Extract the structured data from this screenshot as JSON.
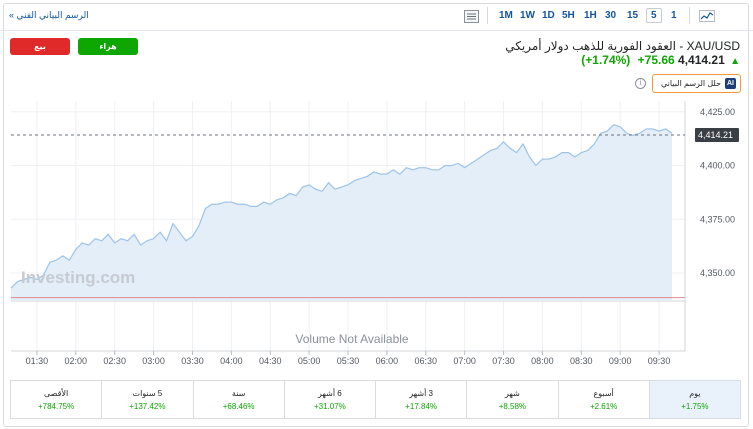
{
  "toolbar": {
    "technical_chart_link": "الرسم البياني الفني »",
    "timeframes": [
      "1M",
      "1W",
      "1D",
      "5H",
      "1H",
      "30",
      "15",
      "5",
      "1"
    ],
    "active_timeframe": "5"
  },
  "actions": {
    "sell_label": "بيع",
    "buy_label": "هراء"
  },
  "instrument": {
    "title": "XAU/USD - العقود الفورية للذهب دولار أمريكي",
    "price": "4,414.21",
    "change": "+75.66",
    "change_pct": "(+1.74%)",
    "ai_button_label": "حلل الرسم البياني",
    "ai_icon_text": "AI",
    "info_icon_text": "i"
  },
  "chart_data": {
    "type": "area",
    "watermark": "Investing.com",
    "no_volume_text": "Volume Not Available",
    "x_ticks": [
      "01:30",
      "02:00",
      "02:30",
      "03:00",
      "03:30",
      "04:00",
      "04:30",
      "05:00",
      "05:30",
      "06:00",
      "06:30",
      "07:00",
      "07:30",
      "08:00",
      "08:30",
      "09:00",
      "09:30"
    ],
    "y_ticks": [
      4350,
      4375,
      4400,
      4425
    ],
    "y_tick_labels": [
      "4,350.00",
      "4,375.00",
      "4,400.00",
      "4,425.00"
    ],
    "ylim": [
      4337,
      4430
    ],
    "last_price": 4414.21,
    "last_price_label": "4,414.21",
    "reference_price": 4338.55,
    "x_start": "01:10",
    "x_end": "09:50",
    "series": [
      {
        "x": [
          "01:10",
          "01:15",
          "01:20",
          "01:25",
          "01:30",
          "01:35",
          "01:40",
          "01:45",
          "01:50",
          "01:55",
          "02:00",
          "02:05",
          "02:10",
          "02:15",
          "02:20",
          "02:25",
          "02:30",
          "02:35",
          "02:40",
          "02:45",
          "02:50",
          "02:55",
          "03:00",
          "03:05",
          "03:10",
          "03:15",
          "03:20",
          "03:25",
          "03:30",
          "03:35",
          "03:40",
          "03:45",
          "03:50",
          "03:55",
          "04:00",
          "04:05",
          "04:10",
          "04:15",
          "04:20",
          "04:25",
          "04:30",
          "04:35",
          "04:40",
          "04:45",
          "04:50",
          "04:55",
          "05:00",
          "05:05",
          "05:10",
          "05:15",
          "05:20",
          "05:25",
          "05:30",
          "05:35",
          "05:40",
          "05:45",
          "05:50",
          "05:55",
          "06:00",
          "06:05",
          "06:10",
          "06:15",
          "06:20",
          "06:25",
          "06:30",
          "06:35",
          "06:40",
          "06:45",
          "06:50",
          "06:55",
          "07:00",
          "07:05",
          "07:10",
          "07:15",
          "07:20",
          "07:25",
          "07:30",
          "07:35",
          "07:40",
          "07:45",
          "07:50",
          "07:55",
          "08:00",
          "08:05",
          "08:10",
          "08:15",
          "08:20",
          "08:25",
          "08:30",
          "08:35",
          "08:40",
          "08:45",
          "08:50",
          "08:55",
          "09:00",
          "09:05",
          "09:10",
          "09:15",
          "09:20",
          "09:25",
          "09:30",
          "09:35",
          "09:40"
        ],
        "values": [
          4343,
          4346,
          4347,
          4348,
          4347,
          4349,
          4355,
          4356,
          4358,
          4356,
          4361,
          4364,
          4363,
          4366,
          4365,
          4368,
          4364,
          4366,
          4365,
          4368,
          4363,
          4365,
          4366,
          4369,
          4365,
          4373,
          4369,
          4365,
          4367,
          4372,
          4380,
          4382,
          4382,
          4383,
          4383,
          4382,
          4382,
          4381,
          4381,
          4383,
          4382,
          4384,
          4385,
          4387,
          4386,
          4390,
          4391,
          4389,
          4388,
          4392,
          4389,
          4390,
          4391,
          4393,
          4394,
          4395,
          4397,
          4396,
          4396,
          4398,
          4396,
          4399,
          4398,
          4399,
          4399,
          4398,
          4398,
          4400,
          4400,
          4401,
          4399,
          4401,
          4403,
          4405,
          4407,
          4408,
          4411,
          4408,
          4406,
          4410,
          4404,
          4400,
          4403,
          4403,
          4404,
          4406,
          4406,
          4404,
          4406,
          4407,
          4410,
          4415,
          4416,
          4419,
          4418,
          4415,
          4414,
          4415,
          4417,
          4417,
          4416,
          4417,
          4415
        ]
      }
    ],
    "x_label": "",
    "y_label": ""
  },
  "performance": [
    {
      "label": "الأقصى",
      "value": "+784.75%"
    },
    {
      "label": "5 سنوات",
      "value": "+137.42%"
    },
    {
      "label": "سنة",
      "value": "+68.46%"
    },
    {
      "label": "6 أشهر",
      "value": "+31.07%"
    },
    {
      "label": "3 أشهر",
      "value": "+17.84%"
    },
    {
      "label": "شهر",
      "value": "+8.58%"
    },
    {
      "label": "أسبوع",
      "value": "+2.61%"
    },
    {
      "label": "يوم",
      "value": "+1.75%",
      "active": true
    }
  ],
  "colors": {
    "accent": "#1256a0",
    "positive": "#0ea600",
    "negative": "#e02a2a",
    "area_fill": "#e3eef9",
    "area_line": "#9ec3e6",
    "reference_line": "#e08a8a"
  }
}
